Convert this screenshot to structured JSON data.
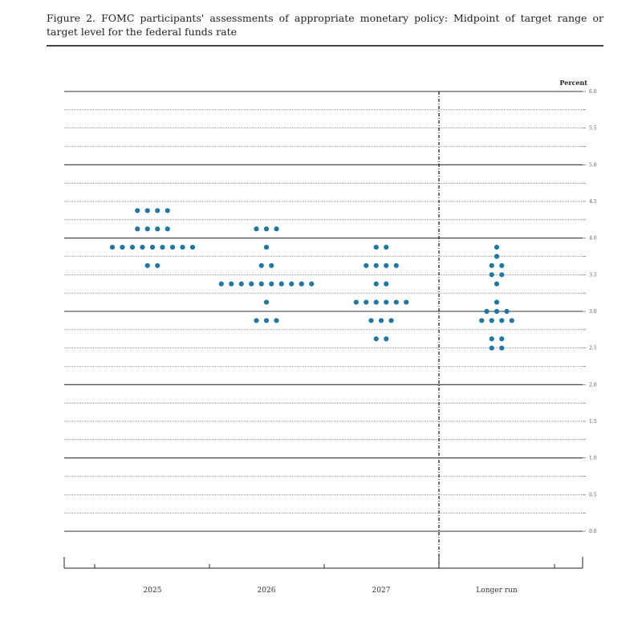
{
  "title": "Figure 2.  FOMC participants' assessments of appropriate monetary policy:  Midpoint of target range or target level for the federal funds rate",
  "colors": {
    "dot": "#1f77a4",
    "grid": "#555555",
    "axis": "#222222"
  },
  "chart_data": {
    "type": "scatter",
    "title": "Figure 2.  FOMC participants' assessments of appropriate monetary policy:  Midpoint of target range or target level for the federal funds rate",
    "ylabel": "Percent",
    "xlabel": "",
    "ylim": [
      0.0,
      6.0
    ],
    "yticks": [
      "0.0",
      "0.5",
      "1.0",
      "1.5",
      "2.0",
      "2.5",
      "3.0",
      "3.5",
      "4.0",
      "4.5",
      "5.0",
      "5.5",
      "6.0"
    ],
    "categories": [
      "2025",
      "2026",
      "2027",
      "Longer run"
    ],
    "grid": true,
    "legend": "none",
    "series": [
      {
        "category": "2025",
        "points": [
          {
            "y": 4.375,
            "count": 4
          },
          {
            "y": 4.125,
            "count": 4
          },
          {
            "y": 3.875,
            "count": 9
          },
          {
            "y": 3.625,
            "count": 2
          }
        ]
      },
      {
        "category": "2026",
        "points": [
          {
            "y": 4.125,
            "count": 3
          },
          {
            "y": 3.875,
            "count": 1
          },
          {
            "y": 3.625,
            "count": 2
          },
          {
            "y": 3.375,
            "count": 10
          },
          {
            "y": 3.125,
            "count": 1
          },
          {
            "y": 2.875,
            "count": 3
          }
        ]
      },
      {
        "category": "2027",
        "points": [
          {
            "y": 3.875,
            "count": 2
          },
          {
            "y": 3.625,
            "count": 4
          },
          {
            "y": 3.375,
            "count": 2
          },
          {
            "y": 3.125,
            "count": 6
          },
          {
            "y": 2.875,
            "count": 3
          },
          {
            "y": 2.625,
            "count": 2
          }
        ]
      },
      {
        "category": "Longer run",
        "points": [
          {
            "y": 3.875,
            "count": 1
          },
          {
            "y": 3.75,
            "count": 1
          },
          {
            "y": 3.625,
            "count": 2
          },
          {
            "y": 3.5,
            "count": 2
          },
          {
            "y": 3.375,
            "count": 1
          },
          {
            "y": 3.125,
            "count": 1
          },
          {
            "y": 3.0,
            "count": 3
          },
          {
            "y": 2.875,
            "count": 4
          },
          {
            "y": 2.625,
            "count": 2
          },
          {
            "y": 2.5,
            "count": 2
          }
        ]
      }
    ]
  }
}
